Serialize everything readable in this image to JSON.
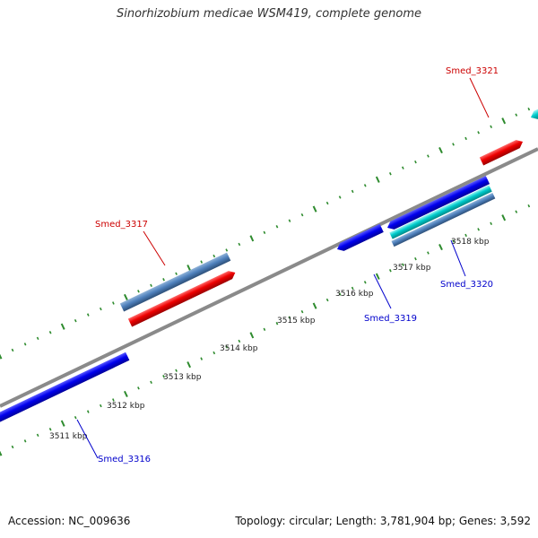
{
  "title": "Sinorhizobium medicae WSM419, complete genome",
  "footer": {
    "accession": "Accession: NC_009636",
    "summary": "Topology: circular; Length: 3,781,904 bp; Genes: 3,592"
  },
  "colors": {
    "backbone": "#8a8a8a",
    "ticks": "#2e8b2e",
    "forward_cds": "#0000ee",
    "reverse_cds": "#ee0000",
    "rna": "#00cccc",
    "other": "#4f81bd",
    "label_forward": "#0000cc",
    "label_reverse": "#cc0000"
  },
  "scale": {
    "unit": "kbp",
    "tick_labels": [
      "3511 kbp",
      "3512 kbp",
      "3513 kbp",
      "3514 kbp",
      "3515 kbp",
      "3516 kbp",
      "3517 kbp",
      "3518 kbp"
    ]
  },
  "gene_labels": [
    {
      "name": "Smed_3316",
      "strand": "forward"
    },
    {
      "name": "Smed_3317",
      "strand": "reverse"
    },
    {
      "name": "Smed_3319",
      "strand": "forward"
    },
    {
      "name": "Smed_3320",
      "strand": "forward"
    },
    {
      "name": "Smed_3321",
      "strand": "reverse"
    }
  ]
}
